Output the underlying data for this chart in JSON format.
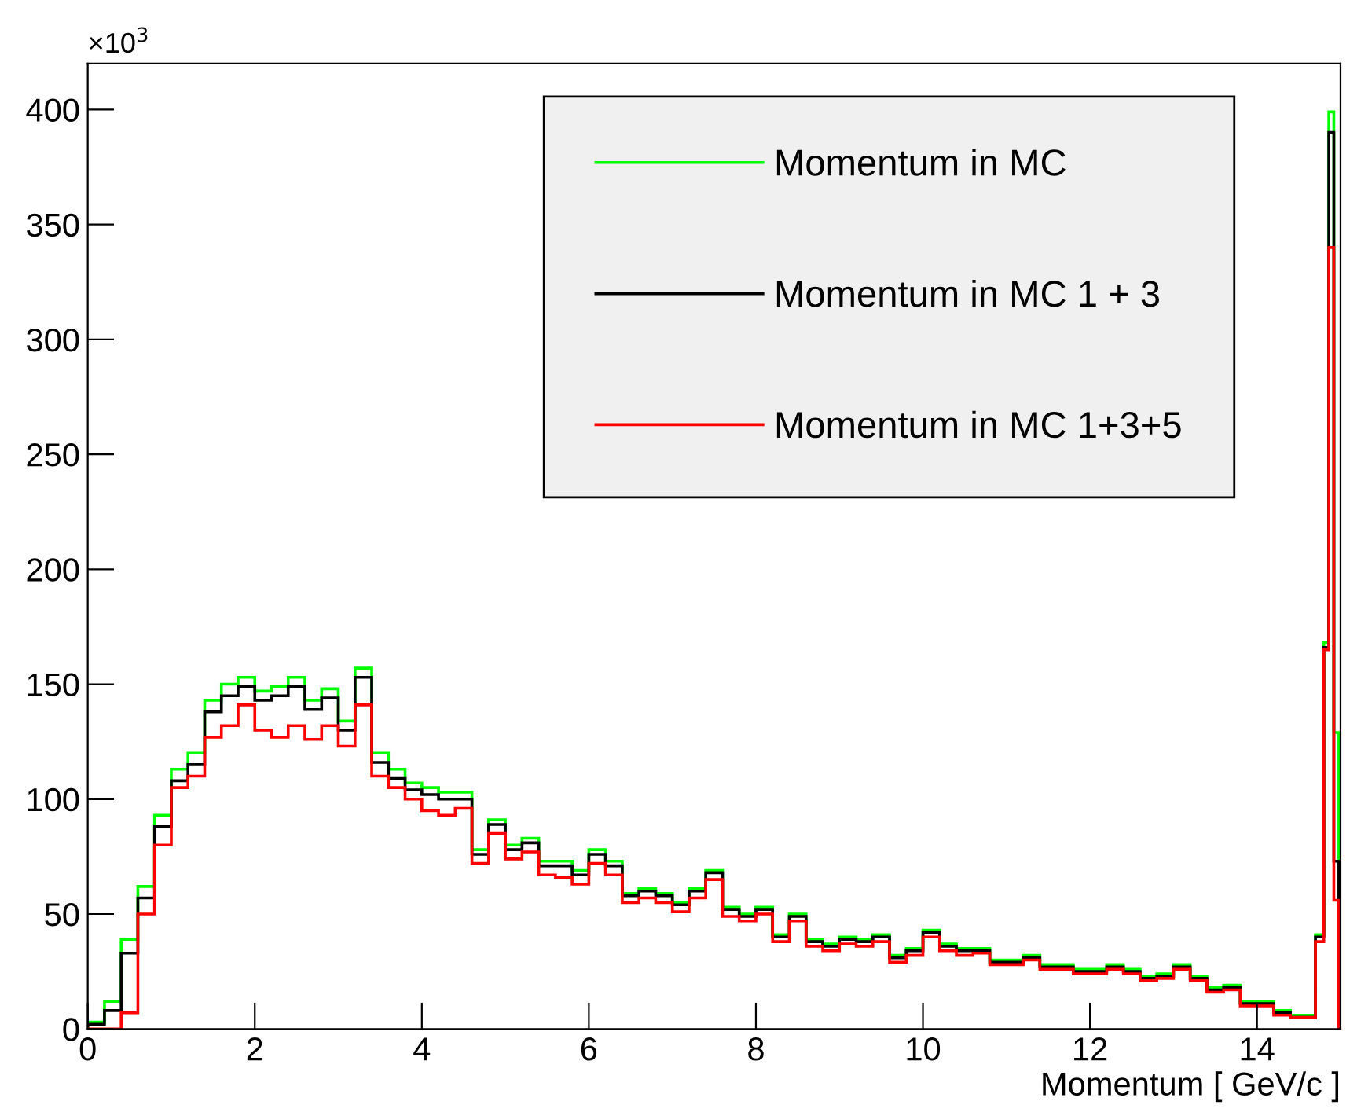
{
  "chart_data": {
    "type": "histogram",
    "xlabel": "Momentum [ GeV/c ]",
    "annotations": [
      "×10$^{3}$"
    ],
    "bins": [
      0,
      0.2,
      0.4,
      0.6,
      0.8,
      1.0,
      1.2,
      1.4,
      1.6,
      1.8,
      2.0,
      2.2,
      2.4,
      2.6,
      2.8,
      3.0,
      3.2,
      3.4,
      3.6,
      3.8,
      4.0,
      4.2,
      4.4,
      4.6,
      4.8,
      5.0,
      5.2,
      5.4,
      5.6,
      5.8,
      6.0,
      6.2,
      6.4,
      6.6,
      6.8,
      7.0,
      7.2,
      7.4,
      7.6,
      7.8,
      8.0,
      8.2,
      8.4,
      8.6,
      8.8,
      9.0,
      9.2,
      9.4,
      9.6,
      9.8,
      10.0,
      10.2,
      10.4,
      10.6,
      10.8,
      11.0,
      11.2,
      11.4,
      11.6,
      11.8,
      12.0,
      12.2,
      12.4,
      12.6,
      12.8,
      13.0,
      13.2,
      13.4,
      13.6,
      13.8,
      14.0,
      14.2,
      14.4,
      14.6,
      14.7,
      14.8,
      14.86,
      14.92,
      14.98,
      15.0
    ],
    "series": [
      {
        "name": "Momentum in MC",
        "color": "#00ff00",
        "values": [
          3,
          12,
          39,
          62,
          93,
          113,
          120,
          143,
          150,
          153,
          147,
          149,
          153,
          143,
          148,
          134,
          157,
          120,
          113,
          107,
          105,
          103,
          103,
          78,
          91,
          80,
          83,
          73,
          73,
          69,
          78,
          73,
          59,
          61,
          59,
          55,
          61,
          69,
          53,
          50,
          53,
          41,
          50,
          39,
          37,
          40,
          39,
          41,
          32,
          35,
          43,
          37,
          35,
          35,
          30,
          30,
          32,
          28,
          28,
          26,
          26,
          28,
          26,
          23,
          24,
          28,
          23,
          18,
          19,
          12,
          12,
          8,
          6,
          6,
          41,
          168,
          399,
          129,
          0
        ]
      },
      {
        "name": "Momentum in MC 1 + 3",
        "color": "#000000",
        "values": [
          2,
          8,
          33,
          57,
          88,
          108,
          115,
          138,
          145,
          149,
          143,
          145,
          149,
          139,
          144,
          130,
          153,
          116,
          109,
          104,
          102,
          100,
          100,
          76,
          89,
          78,
          81,
          71,
          71,
          67,
          76,
          71,
          58,
          60,
          58,
          54,
          60,
          68,
          52,
          49,
          52,
          40,
          49,
          38,
          36,
          39,
          38,
          40,
          31,
          34,
          42,
          36,
          34,
          34,
          29,
          29,
          31,
          27,
          27,
          25,
          25,
          27,
          25,
          22,
          23,
          27,
          22,
          17,
          18,
          11,
          11,
          7,
          5,
          5,
          40,
          166,
          390,
          73,
          0
        ]
      },
      {
        "name": "Momentum in MC 1+3+5",
        "color": "#ff0000",
        "values": [
          0,
          0,
          7,
          50,
          80,
          105,
          110,
          127,
          132,
          141,
          130,
          127,
          132,
          126,
          132,
          123,
          141,
          110,
          105,
          100,
          95,
          93,
          96,
          72,
          85,
          74,
          77,
          67,
          66,
          63,
          72,
          67,
          55,
          57,
          55,
          51,
          57,
          65,
          49,
          47,
          50,
          38,
          47,
          36,
          34,
          37,
          36,
          38,
          29,
          32,
          40,
          34,
          32,
          33,
          28,
          28,
          30,
          26,
          26,
          24,
          24,
          26,
          24,
          21,
          22,
          26,
          21,
          16,
          17,
          10,
          10,
          6,
          5,
          5,
          38,
          165,
          340,
          56,
          0
        ]
      }
    ],
    "xlim": [
      0,
      15
    ],
    "xticks": [
      0,
      2,
      4,
      6,
      8,
      10,
      12,
      14
    ],
    "ylim": [
      0,
      420
    ],
    "yticks": [
      0,
      50,
      100,
      150,
      200,
      250,
      300,
      350,
      400
    ],
    "grid": false,
    "legend": "top right"
  }
}
